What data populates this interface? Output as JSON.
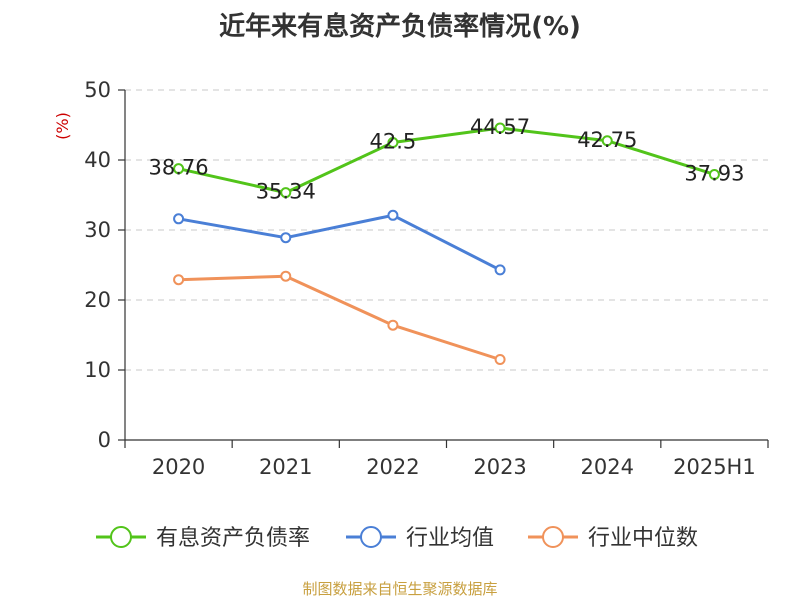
{
  "chart_data": {
    "type": "line",
    "title": "近年来有息资产负债率情况(%)",
    "ylabel": "(%)",
    "categories": [
      "2020",
      "2021",
      "2022",
      "2023",
      "2024",
      "2025H1"
    ],
    "ylim": [
      0,
      50
    ],
    "yticks": [
      0,
      10,
      20,
      30,
      40,
      50
    ],
    "grid": true,
    "legend_position": "bottom",
    "series": [
      {
        "name": "有息资产负债率",
        "color": "#52c41a",
        "values": [
          38.76,
          35.34,
          42.5,
          44.57,
          42.75,
          37.93
        ],
        "labels": [
          "38.76",
          "35.34",
          "42.5",
          "44.57",
          "42.75",
          "37.93"
        ]
      },
      {
        "name": "行业均值",
        "color": "#4a7fd6",
        "values": [
          31.6,
          28.9,
          32.1,
          24.3,
          null,
          null
        ]
      },
      {
        "name": "行业中位数",
        "color": "#f0925a",
        "values": [
          22.9,
          23.4,
          16.4,
          11.5,
          null,
          null
        ]
      }
    ]
  },
  "footer": {
    "source": "制图数据来自恒生聚源数据库"
  }
}
